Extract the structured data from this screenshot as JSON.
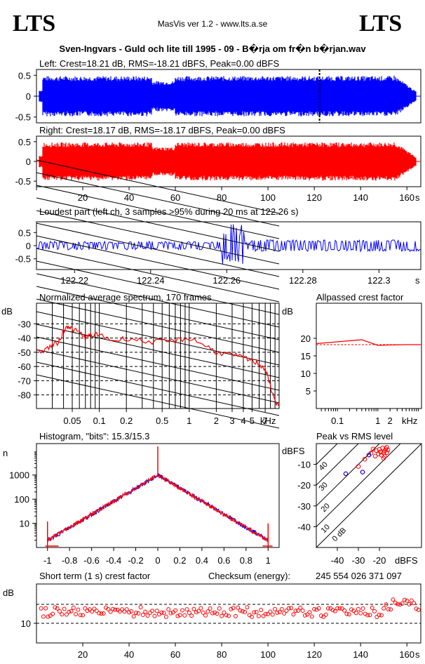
{
  "header": {
    "logo_left": "LTS",
    "logo_right": "LTS",
    "app": "MasVis ver 1.2 - www.lts.a.se",
    "track": "Sven-Ingvars - Guld och lite till 1995 - 09 - B�rja om fr�n b�rjan.wav"
  },
  "chart_data": [
    {
      "id": "left",
      "type": "line",
      "title": "Left: Crest=18.21 dB, RMS=-18.21 dBFS, Peak=0.00 dBFS",
      "color": "#0000ff",
      "yticks": [
        "0.5",
        "0",
        "-0.5"
      ],
      "xlim": [
        0,
        166
      ],
      "marker_x": 122.26
    },
    {
      "id": "right",
      "type": "line",
      "title": "Right: Crest=18.17 dB, RMS=-18.17 dBFS, Peak=0.00 dBFS",
      "color": "#ff0000",
      "yticks": [
        "0.5",
        "0",
        "-0.5"
      ],
      "xticks": [
        "20",
        "40",
        "60",
        "80",
        "100",
        "120",
        "140",
        "160"
      ],
      "xunit": "s",
      "xlim": [
        0,
        166
      ]
    },
    {
      "id": "loudest",
      "type": "line",
      "title": "Loudest part (left  ch, 3 samples >95% during 20 ms at 122.26 s)",
      "color": "#0000ff",
      "yticks": [
        "0.5",
        "0",
        "-0.5"
      ],
      "xticks": [
        "122.22",
        "122.24",
        "122.26",
        "122.28",
        "122.3"
      ],
      "xunit": "s",
      "xlim": [
        122.21,
        122.311
      ]
    },
    {
      "id": "spectrum",
      "type": "line",
      "title": "Normalized average spectrum, 170 frames",
      "ylabel": "dB",
      "color": "#ff0000",
      "yticks": [
        "-30",
        "-40",
        "-50",
        "-60",
        "-70",
        "-80"
      ],
      "xticks": [
        "0.05",
        "0.1",
        "0.2",
        "0.5",
        "1",
        "2",
        "3",
        "4",
        "5",
        "7"
      ],
      "xunit": "kHz",
      "xscale": "log",
      "ylim": [
        -92,
        -18
      ]
    },
    {
      "id": "allpass",
      "type": "line",
      "title": "Allpassed crest factor",
      "ylabel": "dB",
      "color": "#ff0000",
      "yticks": [
        "20",
        "15",
        "10",
        "5"
      ],
      "xticks": [
        "0.1",
        "1",
        "2"
      ],
      "xunit": "kHz",
      "xscale": "log",
      "ylim": [
        0,
        30
      ],
      "reference": 18.2,
      "x": [
        0.03,
        0.1,
        0.4,
        1.0,
        2.0,
        5.0,
        12.0
      ],
      "values": [
        18.5,
        19.0,
        19.6,
        18.0,
        18.1,
        18.2,
        18.2
      ]
    },
    {
      "id": "histogram",
      "type": "line",
      "title": "Histogram, \"bits\": 15.3/15.3",
      "ylabel": "n",
      "yscale": "log",
      "yticks": [
        "1000",
        "100",
        "10"
      ],
      "xticks": [
        "-1",
        "-0.8",
        "-0.6",
        "-0.4",
        "-0.2",
        "0",
        "0.2",
        "0.4",
        "0.6",
        "0.8",
        "1"
      ],
      "xlim": [
        -1.1,
        1.1
      ],
      "peak_center": 1000
    },
    {
      "id": "peakrms",
      "type": "scatter",
      "title": "Peak vs RMS level",
      "ylabel": "dBFS",
      "xlabel": "dBFS",
      "yticks": [
        "-10",
        "-20",
        "-30",
        "-40"
      ],
      "xticks": [
        "-40",
        "-30",
        "-20"
      ],
      "diagonal_labels": [
        "40",
        "30",
        "20",
        "10",
        "0 dB"
      ],
      "points": [
        [
          -16,
          -3
        ],
        [
          -16.5,
          -4.3
        ],
        [
          -17,
          -2.5
        ],
        [
          -17.5,
          -3.6
        ],
        [
          -18,
          -4.5
        ],
        [
          -18.5,
          -2.1
        ],
        [
          -19,
          -5.5
        ],
        [
          -17.5,
          -6.2
        ],
        [
          -16.5,
          -1.8
        ],
        [
          -19.5,
          -4.0
        ],
        [
          -20,
          -2.8
        ],
        [
          -20.5,
          -5.0
        ],
        [
          -18,
          -7.0
        ],
        [
          -21.5,
          -3.3
        ],
        [
          -22,
          -6.0
        ],
        [
          -23,
          -2.6
        ],
        [
          -24,
          -4.6
        ],
        [
          -25,
          -5.5
        ],
        [
          -27,
          -7.5
        ],
        [
          -28,
          -13.7
        ],
        [
          -30,
          -11
        ],
        [
          -36,
          -14.5
        ]
      ]
    },
    {
      "id": "shortcrest",
      "type": "scatter",
      "title": "Short term (1 s) crest factor",
      "ylabel": "dB",
      "yticks": [
        "10"
      ],
      "xticks": [
        "20",
        "40",
        "60",
        "80",
        "100",
        "120",
        "140",
        "160"
      ],
      "xunit": "s",
      "checksum_label": "Checksum (energy):",
      "checksum_value": "245 554 026 371 097"
    }
  ]
}
